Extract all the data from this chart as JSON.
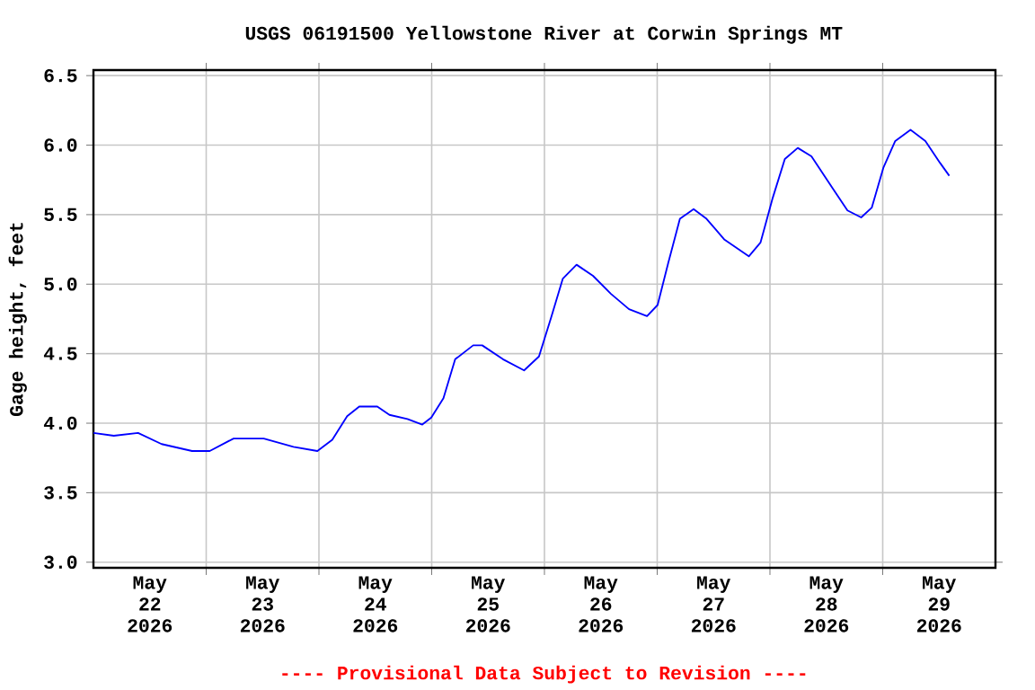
{
  "chart_data": {
    "type": "line",
    "title": "USGS 06191500 Yellowstone River at Corwin Springs MT",
    "ylabel": "Gage height, feet",
    "annotations": [
      "---- Provisional Data Subject to Revision ----"
    ],
    "x": [
      "2026-05-22T00:00",
      "2026-05-22T04:20",
      "2026-05-22T09:30",
      "2026-05-22T14:30",
      "2026-05-22T21:00",
      "2026-05-23T00:45",
      "2026-05-23T05:50",
      "2026-05-23T12:15",
      "2026-05-23T18:35",
      "2026-05-23T23:40",
      "2026-05-24T02:50",
      "2026-05-24T06:00",
      "2026-05-24T08:35",
      "2026-05-24T12:25",
      "2026-05-24T15:00",
      "2026-05-24T18:50",
      "2026-05-24T22:00",
      "2026-05-24T23:55",
      "2026-05-25T02:30",
      "2026-05-25T05:00",
      "2026-05-25T08:50",
      "2026-05-25T10:45",
      "2026-05-25T15:10",
      "2026-05-25T19:40",
      "2026-05-25T22:50",
      "2026-05-26T01:25",
      "2026-05-26T03:55",
      "2026-05-26T06:50",
      "2026-05-26T10:20",
      "2026-05-26T14:10",
      "2026-05-26T18:00",
      "2026-05-26T21:50",
      "2026-05-27T00:05",
      "2026-05-27T02:20",
      "2026-05-27T04:50",
      "2026-05-27T07:45",
      "2026-05-27T10:30",
      "2026-05-27T14:20",
      "2026-05-27T19:30",
      "2026-05-27T22:00",
      "2026-05-28T00:35",
      "2026-05-28T03:10",
      "2026-05-28T05:55",
      "2026-05-28T08:50",
      "2026-05-28T13:20",
      "2026-05-28T16:30",
      "2026-05-28T19:25",
      "2026-05-28T21:40",
      "2026-05-29T00:10",
      "2026-05-29T02:40",
      "2026-05-29T05:55",
      "2026-05-29T09:05",
      "2026-05-29T12:15",
      "2026-05-29T14:10"
    ],
    "series": [
      {
        "color": "#0000ff",
        "values": [
          3.93,
          3.91,
          3.93,
          3.85,
          3.8,
          3.8,
          3.89,
          3.89,
          3.83,
          3.8,
          3.88,
          4.05,
          4.12,
          4.12,
          4.06,
          4.03,
          3.99,
          4.04,
          4.18,
          4.46,
          4.56,
          4.56,
          4.46,
          4.38,
          4.48,
          4.76,
          5.04,
          5.14,
          5.06,
          4.93,
          4.82,
          4.77,
          4.85,
          5.15,
          5.47,
          5.54,
          5.47,
          5.32,
          5.2,
          5.3,
          5.62,
          5.9,
          5.98,
          5.92,
          5.69,
          5.53,
          5.48,
          5.55,
          5.84,
          6.03,
          6.11,
          6.03,
          5.87,
          5.78
        ]
      }
    ],
    "xlim": [
      "2026-05-22T00:00",
      "2026-05-30T00:00"
    ],
    "xticks": [
      {
        "value": "2026-05-22T12:00",
        "label": "May 22 2026"
      },
      {
        "value": "2026-05-23T00:00",
        "label": null
      },
      {
        "value": "2026-05-23T12:00",
        "label": "May 23 2026"
      },
      {
        "value": "2026-05-24T00:00",
        "label": null
      },
      {
        "value": "2026-05-24T12:00",
        "label": "May 24 2026"
      },
      {
        "value": "2026-05-25T00:00",
        "label": null
      },
      {
        "value": "2026-05-25T12:00",
        "label": "May 25 2026"
      },
      {
        "value": "2026-05-26T00:00",
        "label": null
      },
      {
        "value": "2026-05-26T12:00",
        "label": "May 26 2026"
      },
      {
        "value": "2026-05-27T00:00",
        "label": null
      },
      {
        "value": "2026-05-27T12:00",
        "label": "May 27 2026"
      },
      {
        "value": "2026-05-28T00:00",
        "label": null
      },
      {
        "value": "2026-05-28T12:00",
        "label": "May 28 2026"
      },
      {
        "value": "2026-05-29T00:00",
        "label": null
      },
      {
        "value": "2026-05-29T12:00",
        "label": "May 29 2026"
      }
    ],
    "ylim": [
      2.96,
      6.54
    ],
    "yticks": [
      {
        "value": 3,
        "label": "3.0"
      },
      3.5,
      {
        "value": 4,
        "label": "4.0"
      },
      4.5,
      {
        "value": 5,
        "label": "5.0"
      },
      5.5,
      {
        "value": 6,
        "label": "6.0"
      },
      6.5
    ],
    "grid": true,
    "marker": "none",
    "line_style": "solid"
  }
}
